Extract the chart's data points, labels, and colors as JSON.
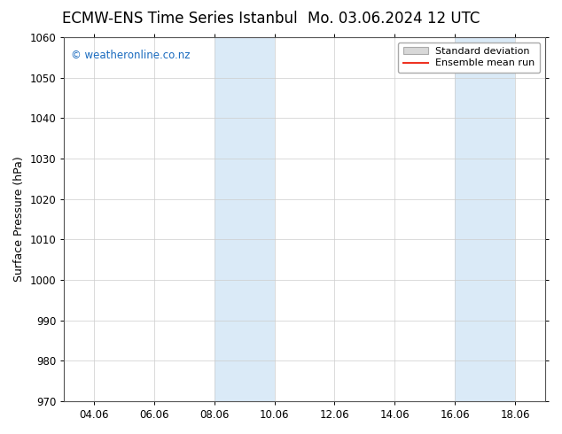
{
  "title_left": "ECMW-ENS Time Series Istanbul",
  "title_right": "Mo. 03.06.2024 12 UTC",
  "ylabel": "Surface Pressure (hPa)",
  "ylim": [
    970,
    1060
  ],
  "yticks": [
    970,
    980,
    990,
    1000,
    1010,
    1020,
    1030,
    1040,
    1050,
    1060
  ],
  "xtick_labels": [
    "04.06",
    "06.06",
    "08.06",
    "10.06",
    "12.06",
    "14.06",
    "16.06",
    "18.06"
  ],
  "xtick_positions": [
    1,
    3,
    5,
    7,
    9,
    11,
    13,
    15
  ],
  "xlim": [
    0,
    16
  ],
  "shaded_bands": [
    {
      "x_start": 5.0,
      "x_end": 7.0
    },
    {
      "x_start": 13.0,
      "x_end": 15.0
    }
  ],
  "shaded_color": "#daeaf7",
  "background_color": "#ffffff",
  "watermark_text": "© weatheronline.co.nz",
  "watermark_color": "#1a6bbf",
  "legend_entries": [
    "Standard deviation",
    "Ensemble mean run"
  ],
  "legend_patch_facecolor": "#d8d8d8",
  "legend_patch_edgecolor": "#aaaaaa",
  "legend_line_color": "#ee3322",
  "title_fontsize": 12,
  "axis_label_fontsize": 9,
  "tick_fontsize": 8.5,
  "watermark_fontsize": 8.5,
  "legend_fontsize": 8,
  "grid_color": "#cccccc",
  "grid_linewidth": 0.5,
  "spine_color": "#555555"
}
